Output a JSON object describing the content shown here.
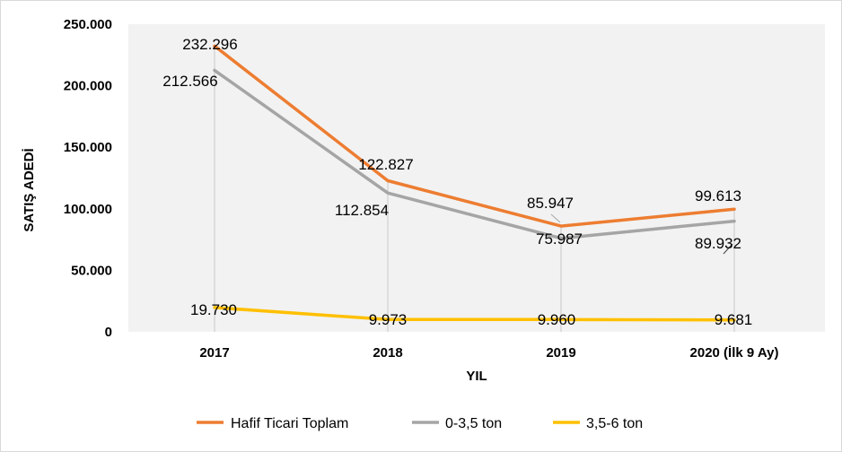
{
  "chart_data": {
    "type": "line",
    "title": "",
    "xlabel": "YIL",
    "ylabel": "SATIŞ ADEDİ",
    "categories": [
      "2017",
      "2018",
      "2019",
      "2020 (İlk 9 Ay)"
    ],
    "ylim": [
      0,
      250000
    ],
    "yticks": [
      0,
      50000,
      100000,
      150000,
      200000,
      250000
    ],
    "ytick_labels": [
      "0",
      "50.000",
      "100.000",
      "150.000",
      "200.000",
      "250.000"
    ],
    "grid": false,
    "legend_position": "bottom",
    "series": [
      {
        "name": "Hafif Ticari Toplam",
        "color": "#ED7D31",
        "values": [
          232296,
          122827,
          85947,
          99613
        ],
        "labels": [
          "232.296",
          "122.827",
          "85.947",
          "99.613"
        ]
      },
      {
        "name": "0-3,5 ton",
        "color": "#A5A5A5",
        "values": [
          212566,
          112854,
          75987,
          89932
        ],
        "labels": [
          "212.566",
          "112.854",
          "75.987",
          "89.932"
        ]
      },
      {
        "name": "3,5-6 ton",
        "color": "#FFC000",
        "values": [
          19730,
          9973,
          9960,
          9681
        ],
        "labels": [
          "19.730",
          "9.973",
          "9.960",
          "9.681"
        ]
      }
    ]
  }
}
